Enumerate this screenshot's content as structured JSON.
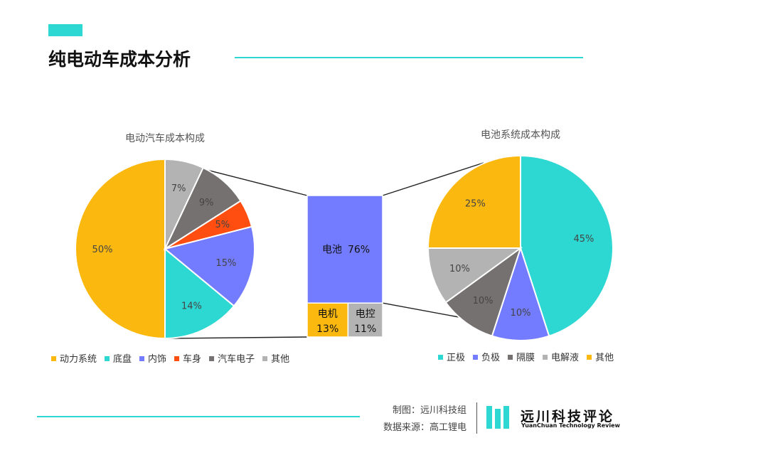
{
  "header": {
    "title": "纯电动车成本分析"
  },
  "colors": {
    "accent": "#2ed8d2"
  },
  "chart_data": [
    {
      "type": "pie",
      "title": "电动汽车成本构成",
      "slices": [
        {
          "label": "动力系统",
          "value": 50,
          "display": "50%",
          "color": "#fbb80f"
        },
        {
          "label": "底盘",
          "value": 14,
          "display": "14%",
          "color": "#2ed8d2"
        },
        {
          "label": "内饰",
          "value": 15,
          "display": "15%",
          "color": "#737bff"
        },
        {
          "label": "车身",
          "value": 5,
          "display": "5%",
          "color": "#ff4e0f"
        },
        {
          "label": "汽车电子",
          "value": 9,
          "display": "9%",
          "color": "#767171"
        },
        {
          "label": "其他",
          "value": 7,
          "display": "7%",
          "color": "#b3b3b3"
        }
      ],
      "legend_position": "bottom"
    },
    {
      "type": "bar",
      "categories": [
        "电池",
        "电机",
        "电控"
      ],
      "values": [
        76,
        13,
        11
      ],
      "displays": [
        "76%",
        "13%",
        "11%"
      ],
      "colors": [
        "#737bff",
        "#fbb80f",
        "#b3b3b3"
      ]
    },
    {
      "type": "pie",
      "title": "电池系统成本构成",
      "slices": [
        {
          "label": "正极",
          "value": 45,
          "display": "45%",
          "color": "#2ed8d2"
        },
        {
          "label": "负极",
          "value": 10,
          "display": "10%",
          "color": "#737bff"
        },
        {
          "label": "隔膜",
          "value": 10,
          "display": "10%",
          "color": "#767171"
        },
        {
          "label": "电解液",
          "value": 10,
          "display": "10%",
          "color": "#b3b3b3"
        },
        {
          "label": "其他",
          "value": 25,
          "display": "25%",
          "color": "#fbb80f"
        }
      ],
      "legend_position": "bottom"
    }
  ],
  "footer": {
    "credit_made_by": "制图：远川科技组",
    "credit_source": "数据来源：高工锂电",
    "logo_name": "远川科技评论",
    "logo_subtitle": "YuanChuan Technology Review"
  }
}
